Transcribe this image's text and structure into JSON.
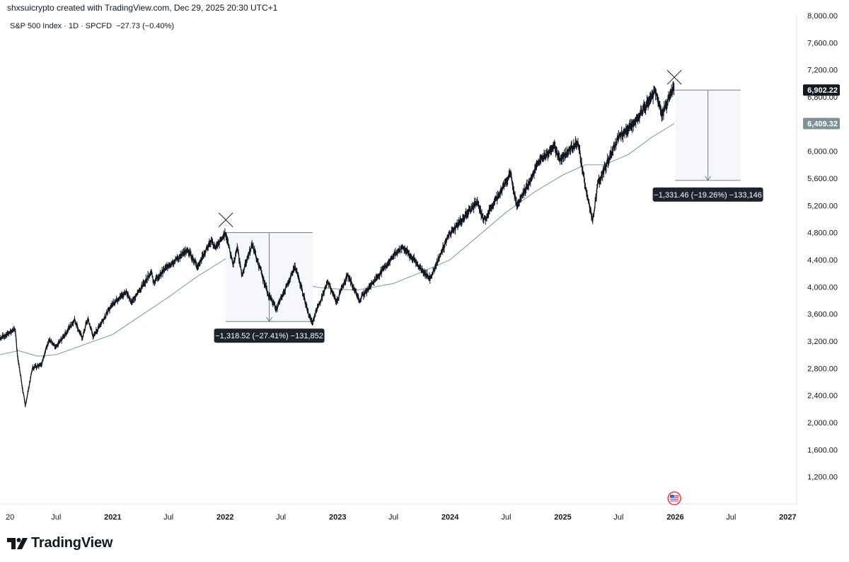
{
  "header": {
    "credit": "shxsuicrypto created with TradingView.com, Dec 29, 2025 20:30 UTC+1"
  },
  "legend": {
    "symbol": "S&P 500 Index · 1D · SPCFD",
    "change": "−27.73 (−0.40%)"
  },
  "branding": {
    "name": "TradingView",
    "icon": "tradingview-logo-icon"
  },
  "flag_icon": "us-flag-icon",
  "colors": {
    "price": "#131722",
    "moving_average": "#8fa6ac",
    "price_label_bg": "#131722",
    "ma_label_bg": "#7c9297",
    "measure_bg": "#1e222d",
    "measure_fill": "#f5f7fa"
  },
  "chart_data": {
    "type": "line",
    "title": "S&P 500 Index · 1D · SPCFD",
    "xlabel": "",
    "ylabel": "",
    "y_axis_position": "right",
    "grid": false,
    "ylim": [
      800,
      8000
    ],
    "x_range": [
      "2020-01-01",
      "2027-01-30"
    ],
    "y_ticks": [
      "8,000.00",
      "7,600.00",
      "7,200.00",
      "6,800.00",
      "6,400.00",
      "6,000.00",
      "5,600.00",
      "5,200.00",
      "4,800.00",
      "4,400.00",
      "4,000.00",
      "3,600.00",
      "3,200.00",
      "2,800.00",
      "2,400.00",
      "2,000.00",
      "1,600.00",
      "1,200.00"
    ],
    "x_ticks": [
      {
        "label": "20",
        "date": "2020-01-01"
      },
      {
        "label": "Jul",
        "date": "2020-07-01"
      },
      {
        "label": "2021",
        "date": "2021-01-01"
      },
      {
        "label": "Jul",
        "date": "2021-07-01"
      },
      {
        "label": "2022",
        "date": "2022-01-01"
      },
      {
        "label": "Jul",
        "date": "2022-07-01"
      },
      {
        "label": "2023",
        "date": "2023-01-01"
      },
      {
        "label": "Jul",
        "date": "2023-07-01"
      },
      {
        "label": "2024",
        "date": "2024-01-01"
      },
      {
        "label": "Jul",
        "date": "2024-07-01"
      },
      {
        "label": "2025",
        "date": "2025-01-01"
      },
      {
        "label": "Jul",
        "date": "2025-07-01"
      },
      {
        "label": "2026",
        "date": "2026-01-01"
      },
      {
        "label": "Jul",
        "date": "2026-07-01"
      },
      {
        "label": "2027",
        "date": "2027-01-01"
      }
    ],
    "series": [
      {
        "kind": "price",
        "values": [
          [
            "2020-01-01",
            3240
          ],
          [
            "2020-02-19",
            3380
          ],
          [
            "2020-02-28",
            2950
          ],
          [
            "2020-03-23",
            2240
          ],
          [
            "2020-04-15",
            2800
          ],
          [
            "2020-05-15",
            2870
          ],
          [
            "2020-06-08",
            3230
          ],
          [
            "2020-06-30",
            3100
          ],
          [
            "2020-08-31",
            3520
          ],
          [
            "2020-09-23",
            3240
          ],
          [
            "2020-10-12",
            3530
          ],
          [
            "2020-10-30",
            3270
          ],
          [
            "2020-12-31",
            3750
          ],
          [
            "2021-02-15",
            3930
          ],
          [
            "2021-03-04",
            3770
          ],
          [
            "2021-05-07",
            4230
          ],
          [
            "2021-05-12",
            4060
          ],
          [
            "2021-07-01",
            4320
          ],
          [
            "2021-09-02",
            4540
          ],
          [
            "2021-10-04",
            4300
          ],
          [
            "2021-11-18",
            4700
          ],
          [
            "2021-11-30",
            4560
          ],
          [
            "2022-01-03",
            4800
          ],
          [
            "2022-01-27",
            4330
          ],
          [
            "2022-02-09",
            4580
          ],
          [
            "2022-02-24",
            4170
          ],
          [
            "2022-03-29",
            4630
          ],
          [
            "2022-05-20",
            3900
          ],
          [
            "2022-06-16",
            3670
          ],
          [
            "2022-08-16",
            4300
          ],
          [
            "2022-09-30",
            3590
          ],
          [
            "2022-10-12",
            3490
          ],
          [
            "2022-11-30",
            4080
          ],
          [
            "2022-12-28",
            3780
          ],
          [
            "2023-02-02",
            4180
          ],
          [
            "2023-03-13",
            3810
          ],
          [
            "2023-06-30",
            4450
          ],
          [
            "2023-07-31",
            4590
          ],
          [
            "2023-10-27",
            4120
          ],
          [
            "2023-12-29",
            4770
          ],
          [
            "2024-03-28",
            5250
          ],
          [
            "2024-04-19",
            4970
          ],
          [
            "2024-07-16",
            5670
          ],
          [
            "2024-08-05",
            5190
          ],
          [
            "2024-10-18",
            5860
          ],
          [
            "2024-12-06",
            6090
          ],
          [
            "2024-12-20",
            5870
          ],
          [
            "2025-02-19",
            6140
          ],
          [
            "2025-03-13",
            5520
          ],
          [
            "2025-04-08",
            4980
          ],
          [
            "2025-04-25",
            5520
          ],
          [
            "2025-06-30",
            6200
          ],
          [
            "2025-08-29",
            6460
          ],
          [
            "2025-10-28",
            6890
          ],
          [
            "2025-11-20",
            6540
          ],
          [
            "2025-12-24",
            6930
          ],
          [
            "2025-12-29",
            6902.22
          ]
        ]
      },
      {
        "kind": "moving_average",
        "values": [
          [
            "2020-01-01",
            3000
          ],
          [
            "2020-03-01",
            3060
          ],
          [
            "2020-05-01",
            2980
          ],
          [
            "2020-07-01",
            3000
          ],
          [
            "2020-10-01",
            3150
          ],
          [
            "2021-01-01",
            3300
          ],
          [
            "2021-07-01",
            3850
          ],
          [
            "2021-10-01",
            4150
          ],
          [
            "2022-01-01",
            4410
          ],
          [
            "2022-03-01",
            4400
          ],
          [
            "2022-06-01",
            4250
          ],
          [
            "2022-09-01",
            4050
          ],
          [
            "2022-11-01",
            3990
          ],
          [
            "2023-03-01",
            3950
          ],
          [
            "2023-07-01",
            4050
          ],
          [
            "2023-10-01",
            4220
          ],
          [
            "2024-01-01",
            4400
          ],
          [
            "2024-04-01",
            4750
          ],
          [
            "2024-07-01",
            5100
          ],
          [
            "2024-10-01",
            5400
          ],
          [
            "2025-01-01",
            5650
          ],
          [
            "2025-03-15",
            5800
          ],
          [
            "2025-05-15",
            5800
          ],
          [
            "2025-08-01",
            5950
          ],
          [
            "2025-10-15",
            6200
          ],
          [
            "2025-12-29",
            6409.32
          ]
        ]
      }
    ],
    "price_labels": [
      {
        "value": 6902.22,
        "text": "6,902.22",
        "kind": "price"
      },
      {
        "value": 6409.32,
        "text": "6,409.32",
        "kind": "moving_average"
      }
    ],
    "annotations": [
      {
        "type": "price_range",
        "start_date": "2022-01-03",
        "end_date": "2022-10-12",
        "from_price": 4800,
        "to_price": 3490,
        "label": "−1,318.52 (−27.41%) −131,852"
      },
      {
        "type": "price_range",
        "start_date": "2026-01-01",
        "end_date": "2026-08-01",
        "from_price": 6902.22,
        "to_price": 5570,
        "label": "−1,331.46 (−19.26%) −133,146"
      }
    ],
    "markers": [
      {
        "type": "cross",
        "date": "2022-01-03",
        "value": 4800
      },
      {
        "type": "cross",
        "date": "2025-12-29",
        "value": 6902.22
      }
    ]
  }
}
